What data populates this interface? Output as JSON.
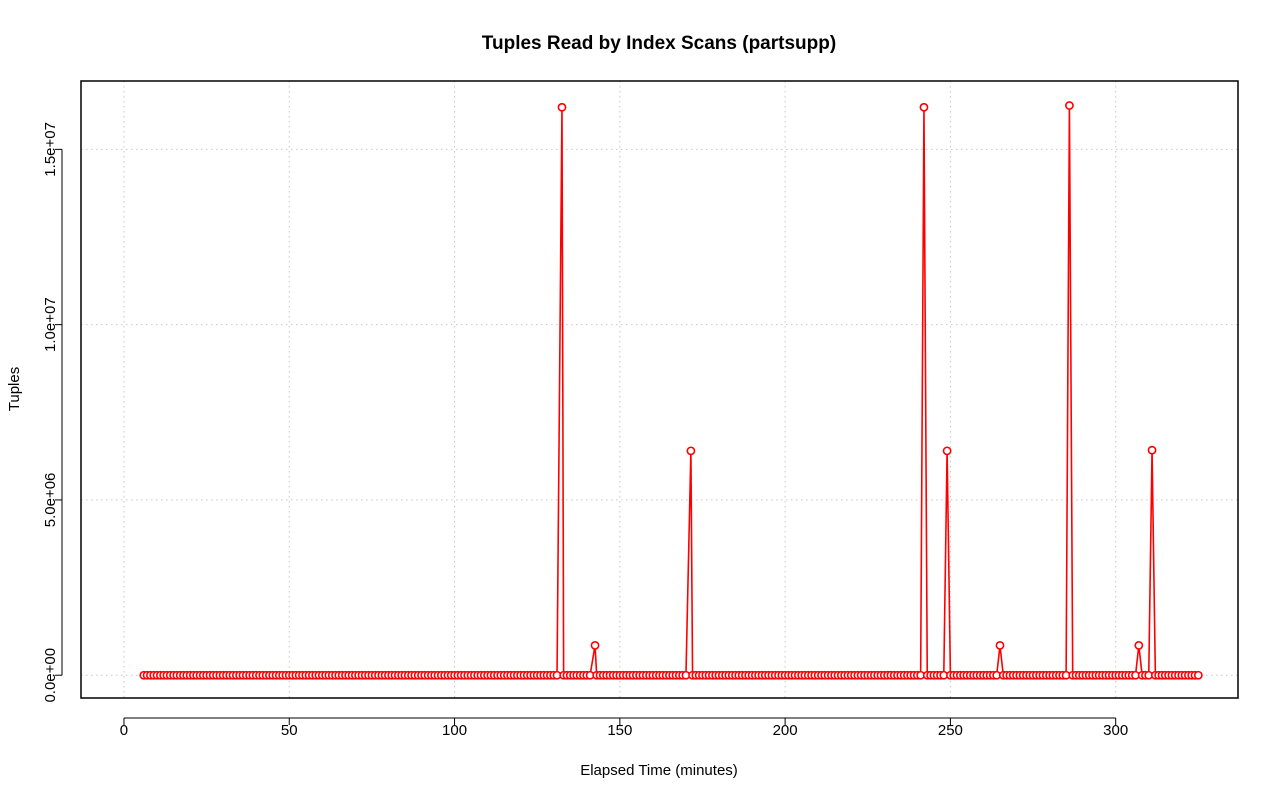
{
  "chart_data": {
    "type": "line",
    "title": "Tuples Read by Index Scans (partsupp)",
    "xlabel": "Elapsed Time (minutes)",
    "ylabel": "Tuples",
    "xlim": [
      -13,
      337
    ],
    "ylim": [
      -650000,
      16950000
    ],
    "x_ticks": [
      0,
      50,
      100,
      150,
      200,
      250,
      300
    ],
    "x_tick_labels": [
      "0",
      "50",
      "100",
      "150",
      "200",
      "250",
      "300"
    ],
    "y_ticks": [
      0,
      5000000,
      10000000,
      15000000
    ],
    "y_tick_labels": [
      "0.0e+00",
      "5.0e+06",
      "1.0e+07",
      "1.5e+07"
    ],
    "grid": true,
    "series_color": "#ff0000",
    "baseline": {
      "x_start": 6,
      "x_end": 325,
      "x_step": 1,
      "y": 0
    },
    "peaks": [
      {
        "x": 132.5,
        "y": 16200000
      },
      {
        "x": 142.5,
        "y": 850000
      },
      {
        "x": 171.5,
        "y": 6400000
      },
      {
        "x": 242,
        "y": 16200000
      },
      {
        "x": 249,
        "y": 6400000
      },
      {
        "x": 265,
        "y": 850000
      },
      {
        "x": 286,
        "y": 16250000
      },
      {
        "x": 307,
        "y": 850000
      },
      {
        "x": 311,
        "y": 6420000
      }
    ]
  }
}
